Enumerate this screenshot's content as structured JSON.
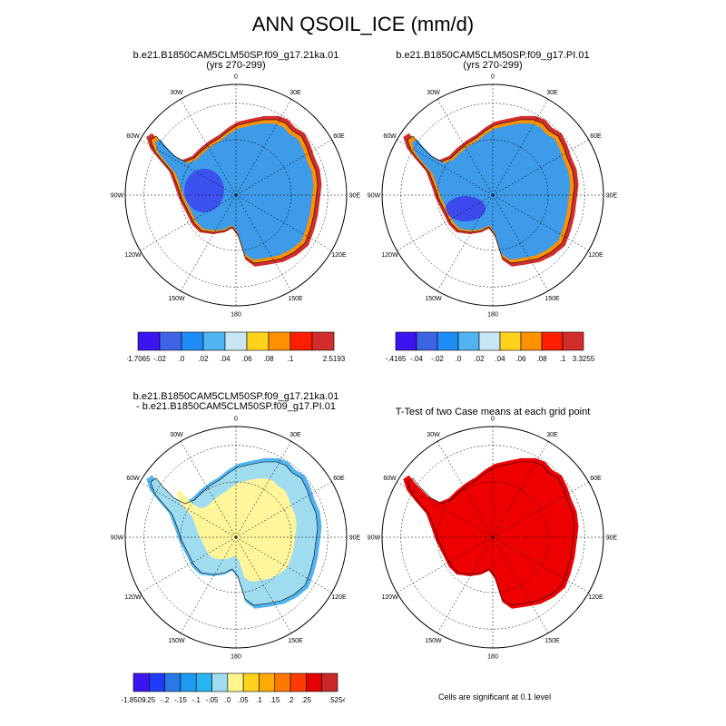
{
  "title": "ANN QSOIL_ICE (mm/d)",
  "panels": [
    {
      "id": "case1",
      "title_lines": [
        "b.e21.B1850CAM5CLM50SP.f09_g17.21ka.01",
        "(yrs 270-299)"
      ],
      "lon_labels": [
        "0",
        "30E",
        "60E",
        "90E",
        "120E",
        "150E",
        "180",
        "150W",
        "120W",
        "90W",
        "60W",
        "30W"
      ]
    },
    {
      "id": "case2",
      "title_lines": [
        "b.e21.B1850CAM5CLM50SP.f09_g17.PI.01",
        "(yrs 270-299)"
      ],
      "lon_labels": [
        "0",
        "30E",
        "60E",
        "90E",
        "120E",
        "150E",
        "180",
        "150W",
        "120W",
        "90W",
        "60W",
        "30W"
      ]
    },
    {
      "id": "diff",
      "title_lines": [
        "b.e21.B1850CAM5CLM50SP.f09_g17.21ka.01",
        "- b.e21.B1850CAM5CLM50SP.f09_g17.PI.01"
      ],
      "lon_labels": [
        "0",
        "30E",
        "60E",
        "90E",
        "120E",
        "150E",
        "180",
        "150W",
        "120W",
        "90W",
        "60W",
        "30W"
      ]
    },
    {
      "id": "ttest",
      "title_lines": [
        "T-Test of two Case means at each grid point"
      ],
      "lon_labels": [
        "0",
        "30E",
        "60E",
        "90E",
        "120E",
        "150E",
        "180",
        "150W",
        "120W",
        "90W",
        "60W",
        "30W"
      ],
      "note": "Cells are significant at 0.1 level"
    }
  ],
  "colorbars": [
    {
      "id": "cb1",
      "colors": [
        "#3c14f0",
        "#3e64e6",
        "#1e8cf5",
        "#50b4f0",
        "#c8e6f5",
        "#ffd21e",
        "#ff9100",
        "#ff1e00",
        "#d22d2d"
      ],
      "labels": [
        "-1.7065",
        "-.02",
        ".0",
        ".02",
        ".04",
        ".06",
        ".08",
        ".1",
        "2.5193"
      ]
    },
    {
      "id": "cb2",
      "colors": [
        "#3c14f0",
        "#3e64e6",
        "#1e8cf5",
        "#50b4f0",
        "#c8e6f5",
        "#ffd21e",
        "#ff9100",
        "#ff1e00",
        "#d22d2d"
      ],
      "labels": [
        "-.4165",
        "-.04",
        "-.02",
        ".0",
        ".02",
        ".04",
        ".06",
        ".08",
        ".1",
        "3.3255"
      ]
    },
    {
      "id": "cb3",
      "colors": [
        "#3c14f0",
        "#1e3cf5",
        "#2878e6",
        "#1e9bf0",
        "#28b4f0",
        "#a0dcf0",
        "#fff58c",
        "#ffd21e",
        "#ffaa00",
        "#ff7800",
        "#ff3c00",
        "#e60000",
        "#c82828"
      ],
      "labels": [
        "-1.8509",
        "-.25",
        "-.2",
        "-.15",
        "-.1",
        "-.05",
        ".0",
        ".05",
        ".1",
        ".15",
        ".2",
        ".25",
        ".5254"
      ]
    }
  ],
  "map_colors": {
    "interior_blue": "#3d9be9",
    "coast_red": "#d22d2d",
    "coast_orange": "#ff9100",
    "coast_yellow": "#ffd21e",
    "deep_blue": "#3c14f0",
    "diff_yellow": "#fff59b",
    "diff_light_blue": "#a0dcf0",
    "diff_blue": "#50b4f0",
    "ttest_red": "#ee0000"
  }
}
